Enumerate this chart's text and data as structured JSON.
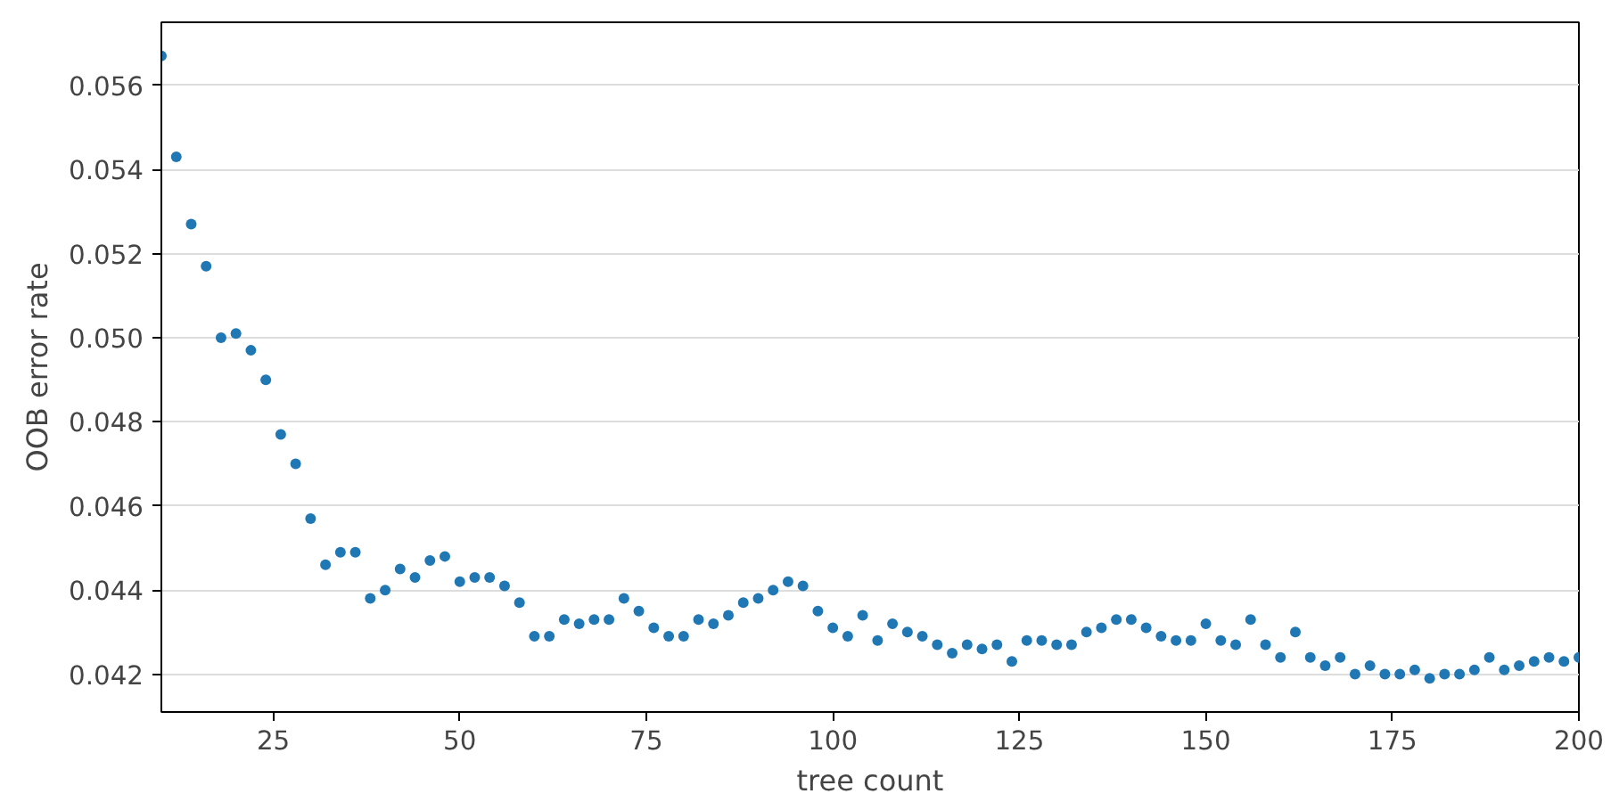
{
  "chart_data": {
    "type": "scatter",
    "xlabel": "tree count",
    "ylabel": "OOB error rate",
    "x": [
      10,
      12,
      14,
      16,
      18,
      20,
      22,
      24,
      26,
      28,
      30,
      32,
      34,
      36,
      38,
      40,
      42,
      44,
      46,
      48,
      50,
      52,
      54,
      56,
      58,
      60,
      62,
      64,
      66,
      68,
      70,
      72,
      74,
      76,
      78,
      80,
      82,
      84,
      86,
      88,
      90,
      92,
      94,
      96,
      98,
      100,
      102,
      104,
      106,
      108,
      110,
      112,
      114,
      116,
      118,
      120,
      122,
      124,
      126,
      128,
      130,
      132,
      134,
      136,
      138,
      140,
      142,
      144,
      146,
      148,
      150,
      152,
      154,
      156,
      158,
      160,
      162,
      164,
      166,
      168,
      170,
      172,
      174,
      176,
      178,
      180,
      182,
      184,
      186,
      188,
      190,
      192,
      194,
      196,
      198,
      200
    ],
    "series": [
      {
        "color": "#1f77b4",
        "values": [
          0.0567,
          0.0543,
          0.0527,
          0.0517,
          0.05,
          0.0501,
          0.0497,
          0.049,
          0.0477,
          0.047,
          0.0457,
          0.0446,
          0.0449,
          0.0449,
          0.0438,
          0.044,
          0.0445,
          0.0443,
          0.0447,
          0.0448,
          0.0442,
          0.0443,
          0.0443,
          0.0441,
          0.0437,
          0.0429,
          0.0429,
          0.0433,
          0.0432,
          0.0433,
          0.0433,
          0.0438,
          0.0435,
          0.0431,
          0.0429,
          0.0429,
          0.0433,
          0.0432,
          0.0434,
          0.0437,
          0.0438,
          0.044,
          0.0442,
          0.0441,
          0.0435,
          0.0431,
          0.0429,
          0.0434,
          0.0428,
          0.0432,
          0.043,
          0.0429,
          0.0427,
          0.0425,
          0.0427,
          0.0426,
          0.0427,
          0.0423,
          0.0428,
          0.0428,
          0.0427,
          0.0427,
          0.043,
          0.0431,
          0.0433,
          0.0433,
          0.0431,
          0.0429,
          0.0428,
          0.0428,
          0.0432,
          0.0428,
          0.0427,
          0.0433,
          0.0427,
          0.0424,
          0.043,
          0.0424,
          0.0422,
          0.0424,
          0.042,
          0.0422,
          0.042,
          0.042,
          0.0421,
          0.0419,
          0.042,
          0.042,
          0.0421,
          0.0424,
          0.0421,
          0.0422,
          0.0423,
          0.0424,
          0.0423,
          0.0424
        ]
      }
    ],
    "xlim": [
      10,
      200
    ],
    "xticks": [
      25,
      50,
      75,
      100,
      125,
      150,
      175,
      200
    ],
    "ylim": [
      0.0411,
      0.0575
    ],
    "yticks": [
      {
        "value": 0.042,
        "label": "0.042"
      },
      {
        "value": 0.044,
        "label": "0.044"
      },
      {
        "value": 0.046,
        "label": "0.046"
      },
      {
        "value": 0.048,
        "label": "0.048"
      },
      {
        "value": 0.05,
        "label": "0.050"
      },
      {
        "value": 0.052,
        "label": "0.052"
      },
      {
        "value": 0.054,
        "label": "0.054"
      },
      {
        "value": 0.056,
        "label": "0.056"
      }
    ],
    "grid": "y",
    "marker": "circle"
  }
}
